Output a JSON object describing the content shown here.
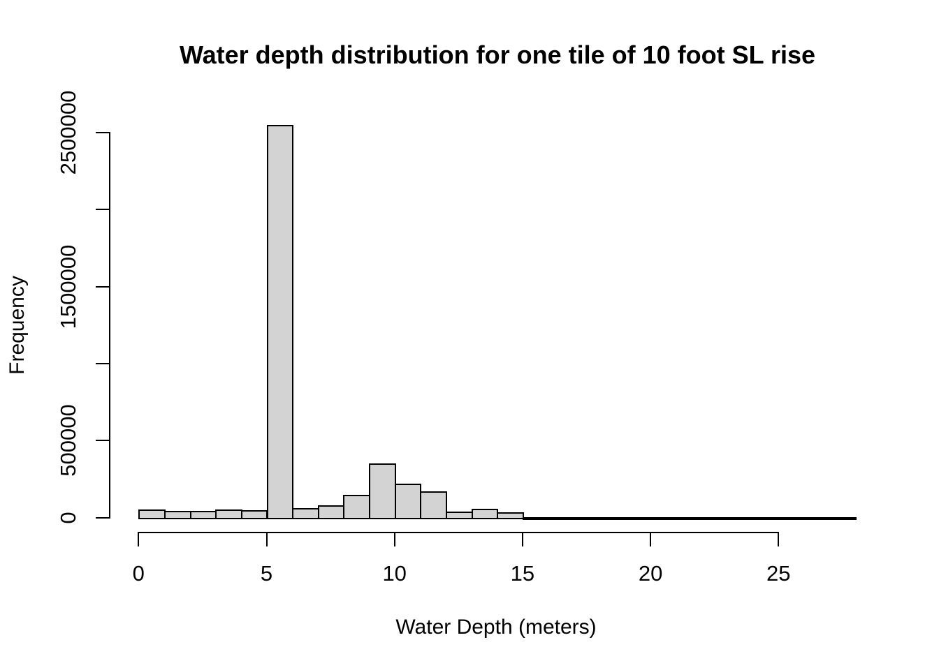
{
  "chart_data": {
    "type": "bar",
    "subtype": "histogram",
    "title": "Water depth distribution for one tile of 10 foot SL rise",
    "xlabel": "Water Depth (meters)",
    "ylabel": "Frequency",
    "bin_start": 0,
    "bin_width": 1,
    "categories": [
      "0-1",
      "1-2",
      "2-3",
      "3-4",
      "4-5",
      "5-6",
      "6-7",
      "7-8",
      "8-9",
      "9-10",
      "10-11",
      "11-12",
      "12-13",
      "13-14",
      "14-15",
      "15-16",
      "16-17",
      "17-18",
      "18-19",
      "19-20",
      "20-21",
      "21-22",
      "22-23",
      "23-24",
      "24-25",
      "25-26",
      "26-27",
      "27-28"
    ],
    "values": [
      55000,
      45000,
      45000,
      52000,
      50000,
      2550000,
      60000,
      78000,
      150000,
      350000,
      220000,
      170000,
      40000,
      57000,
      35000,
      3000,
      2000,
      1500,
      1200,
      1000,
      800,
      600,
      500,
      400,
      300,
      200,
      150,
      100
    ],
    "x_ticks": [
      {
        "value": 0,
        "label": "0"
      },
      {
        "value": 5,
        "label": "5"
      },
      {
        "value": 10,
        "label": "10"
      },
      {
        "value": 15,
        "label": "15"
      },
      {
        "value": 20,
        "label": "20"
      },
      {
        "value": 25,
        "label": "25"
      }
    ],
    "y_ticks": [
      {
        "value": 0,
        "label": "0"
      },
      {
        "value": 500000,
        "label": "500000"
      },
      {
        "value": 1000000,
        "label": ""
      },
      {
        "value": 1500000,
        "label": "1500000"
      },
      {
        "value": 2000000,
        "label": ""
      },
      {
        "value": 2500000,
        "label": "2500000"
      }
    ],
    "xlim": [
      0,
      28
    ],
    "ylim": [
      0,
      2500000
    ],
    "grid": false,
    "legend": "none",
    "bar_fill": "#d3d3d3",
    "bar_border": "#000000",
    "axis_color": "#000000",
    "text_color": "#000000",
    "background": "#ffffff"
  }
}
